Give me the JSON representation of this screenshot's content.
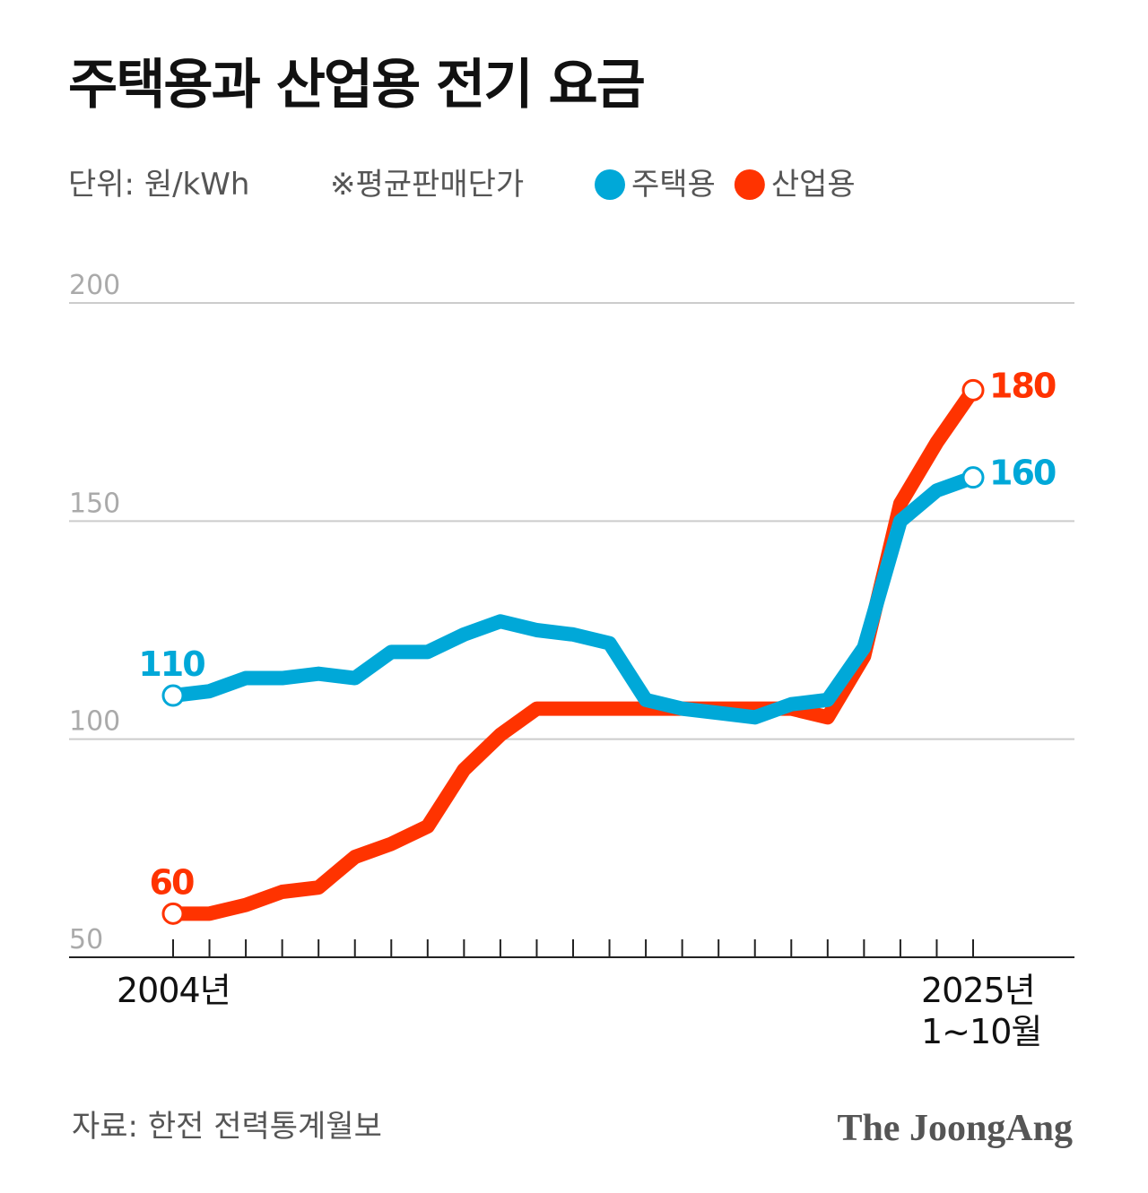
{
  "chart_data": {
    "type": "line",
    "title": "주택용과 산업용 전기 요금",
    "unit": "단위: 원/kWh",
    "note": "※평균판매단가",
    "source": "자료: 한전 전력통계월보",
    "brand": "The JoongAng",
    "categories": [
      "2004년",
      null,
      null,
      null,
      null,
      null,
      null,
      null,
      null,
      null,
      null,
      null,
      null,
      null,
      null,
      null,
      null,
      null,
      null,
      null,
      null,
      null,
      "2025년\n1~10월"
    ],
    "series": [
      {
        "name": "주택용",
        "color": "#00a8d8",
        "values": [
          110,
          111,
          114,
          114,
          115,
          114,
          120,
          120,
          124,
          127,
          125,
          124,
          122,
          109,
          107,
          106,
          105,
          108,
          109,
          121,
          150,
          157,
          160
        ]
      },
      {
        "name": "산업용",
        "color": "#ff3300",
        "values": [
          60,
          60,
          62,
          65,
          66,
          73,
          76,
          80,
          93,
          101,
          107,
          107,
          107,
          107,
          107,
          107,
          107,
          107,
          105,
          119,
          154,
          168,
          180
        ]
      }
    ],
    "ylim": [
      50,
      200
    ],
    "yticks": [
      50,
      100,
      150,
      200
    ],
    "grid": true
  }
}
